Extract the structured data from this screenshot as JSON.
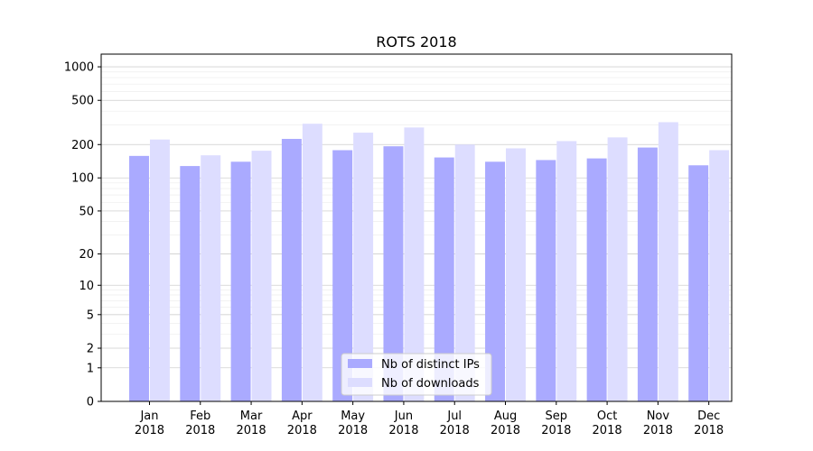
{
  "chart_data": {
    "type": "bar",
    "title": "ROTS 2018",
    "xlabel": "",
    "ylabel": "",
    "y_scale": "symlog",
    "ylim": [
      0,
      1300
    ],
    "y_ticks": [
      0,
      1,
      2,
      5,
      10,
      20,
      50,
      100,
      200,
      500,
      1000
    ],
    "grid": "horizontal, on",
    "legend_position": "bottom-center",
    "categories": [
      [
        "Jan",
        "2018"
      ],
      [
        "Feb",
        "2018"
      ],
      [
        "Mar",
        "2018"
      ],
      [
        "Apr",
        "2018"
      ],
      [
        "May",
        "2018"
      ],
      [
        "Jun",
        "2018"
      ],
      [
        "Jul",
        "2018"
      ],
      [
        "Aug",
        "2018"
      ],
      [
        "Sep",
        "2018"
      ],
      [
        "Oct",
        "2018"
      ],
      [
        "Nov",
        "2018"
      ],
      [
        "Dec",
        "2018"
      ]
    ],
    "series": [
      {
        "name": "Nb of distinct IPs",
        "color": "#aaaaff",
        "values": [
          158,
          128,
          140,
          225,
          178,
          193,
          153,
          140,
          145,
          150,
          188,
          130
        ]
      },
      {
        "name": "Nb of downloads",
        "color": "#ddddff",
        "values": [
          222,
          160,
          176,
          308,
          256,
          285,
          200,
          185,
          215,
          232,
          318,
          178
        ]
      }
    ]
  }
}
